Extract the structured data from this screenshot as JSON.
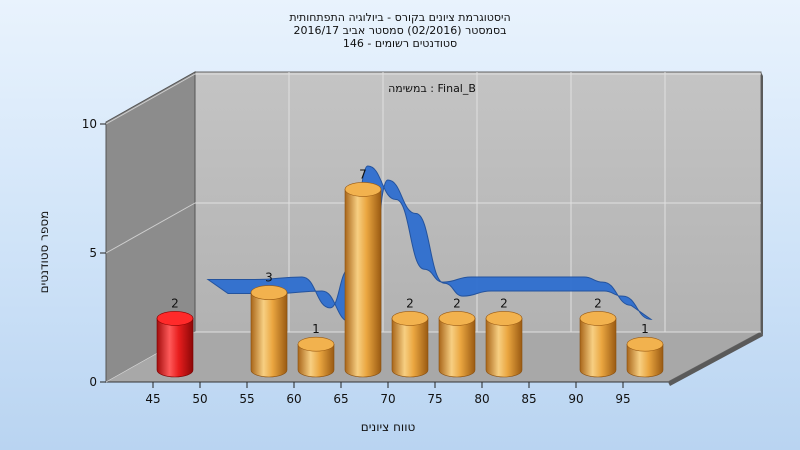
{
  "chart_data": {
    "type": "bar",
    "title_lines": [
      "היסטוגרמת ציונים בקורס - ביולוגיה התפתחותית",
      "בסמסטר  (02/2016)  סמסטר אביב 2016/17",
      "סטודנטים רשומים - 146"
    ],
    "annotation": "במשימה : Final_B",
    "xlabel": "טווח ציונים",
    "ylabel": "מספר סטודנטים",
    "x_ticks": [
      "45",
      "50",
      "55",
      "60",
      "65",
      "70",
      "75",
      "80",
      "85",
      "90",
      "95"
    ],
    "y_ticks": [
      "0",
      "5",
      "10"
    ],
    "ylim": [
      0,
      10
    ],
    "grid": true,
    "categories": [
      "45",
      "55",
      "60",
      "65",
      "70",
      "75",
      "80",
      "90",
      "95"
    ],
    "values": [
      2,
      3,
      1,
      7,
      2,
      2,
      2,
      2,
      1
    ],
    "data_labels": [
      "2",
      "3",
      "1",
      "7",
      "2",
      "2",
      "2",
      "2",
      "1"
    ],
    "highlight_category": "45",
    "curve_x": [
      50,
      55,
      60,
      63,
      65,
      67,
      70,
      73,
      75,
      78,
      80,
      85,
      90,
      92,
      95
    ],
    "curve_y": [
      3.1,
      3.1,
      3.2,
      2.0,
      3.5,
      7.5,
      6.2,
      3.5,
      3.0,
      3.2,
      3.2,
      3.2,
      3.2,
      3.0,
      2.1
    ],
    "colors": {
      "bar": "#e8a33a",
      "bar_highlight": "#e51f1f",
      "curve": "#2f6fd0",
      "back_wall": "#b8b8b8",
      "side_wall": "#8c8c8c",
      "floor": "#a6a6a6"
    }
  }
}
